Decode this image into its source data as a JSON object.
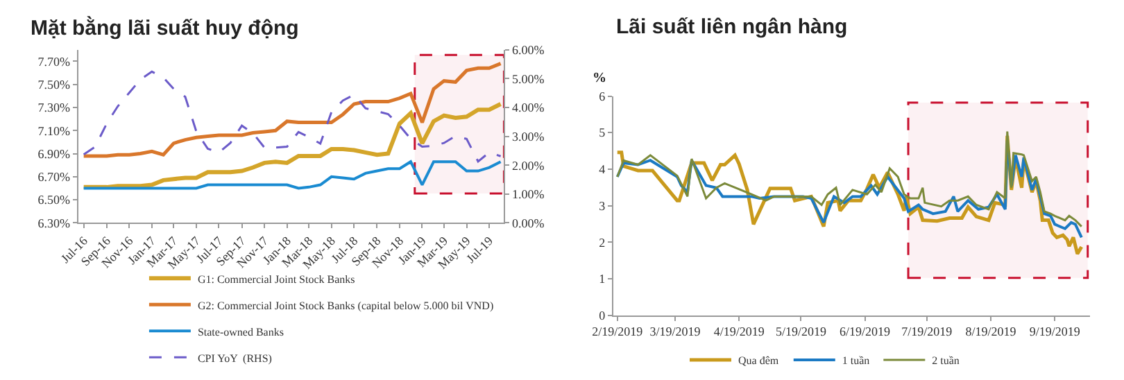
{
  "chart_data": [
    {
      "type": "line",
      "title": "Mặt bằng lãi suất huy động",
      "x": [
        "2016-07",
        "2016-08",
        "2016-09",
        "2016-10",
        "2016-11",
        "2016-12",
        "2017-01",
        "2017-02",
        "2017-03",
        "2017-04",
        "2017-05",
        "2017-06",
        "2017-07",
        "2017-08",
        "2017-09",
        "2017-10",
        "2017-11",
        "2017-12",
        "2018-01",
        "2018-02",
        "2018-03",
        "2018-04",
        "2018-05",
        "2018-06",
        "2018-07",
        "2018-08",
        "2018-09",
        "2018-10",
        "2018-11",
        "2018-12",
        "2019-01",
        "2019-02",
        "2019-03",
        "2019-04",
        "2019-05",
        "2019-06",
        "2019-07",
        "2019-08"
      ],
      "series": [
        {
          "name": "G1: Commercial Joint Stock Banks",
          "color": "#d4a52a",
          "values": [
            6.61,
            6.61,
            6.61,
            6.62,
            6.62,
            6.62,
            6.63,
            6.67,
            6.68,
            6.69,
            6.69,
            6.74,
            6.74,
            6.74,
            6.75,
            6.78,
            6.82,
            6.83,
            6.82,
            6.88,
            6.88,
            6.88,
            6.94,
            6.94,
            6.93,
            6.91,
            6.89,
            6.9,
            7.16,
            7.25,
            6.99,
            7.18,
            7.23,
            7.21,
            7.22,
            7.28,
            7.28,
            7.33
          ]
        },
        {
          "name": "G2: Commercial Joint Stock Banks (capital below 5.000 bil VND)",
          "color": "#d9772b",
          "values": [
            6.88,
            6.88,
            6.88,
            6.89,
            6.89,
            6.9,
            6.92,
            6.89,
            6.99,
            7.02,
            7.04,
            7.05,
            7.06,
            7.06,
            7.06,
            7.08,
            7.09,
            7.1,
            7.18,
            7.17,
            7.17,
            7.17,
            7.17,
            7.24,
            7.33,
            7.35,
            7.35,
            7.35,
            7.38,
            7.42,
            7.17,
            7.46,
            7.53,
            7.52,
            7.62,
            7.64,
            7.64,
            7.68
          ]
        },
        {
          "name": "State-owned Banks",
          "color": "#1a8bd1",
          "values": [
            6.6,
            6.6,
            6.6,
            6.6,
            6.6,
            6.6,
            6.6,
            6.6,
            6.6,
            6.6,
            6.6,
            6.63,
            6.63,
            6.63,
            6.63,
            6.63,
            6.63,
            6.63,
            6.63,
            6.6,
            6.61,
            6.63,
            6.7,
            6.69,
            6.68,
            6.73,
            6.75,
            6.77,
            6.77,
            6.83,
            6.63,
            6.83,
            6.83,
            6.83,
            6.75,
            6.75,
            6.78,
            6.83
          ]
        },
        {
          "name": "CPI YoY  (RHS)",
          "color": "#6b5bc9",
          "axis": "y2",
          "line_style": "dashed",
          "values": [
            2.37,
            2.64,
            3.44,
            4.04,
            4.51,
            4.97,
            5.24,
            5.04,
            4.64,
            4.37,
            3.17,
            2.57,
            2.44,
            2.77,
            3.37,
            3.11,
            2.61,
            2.61,
            2.64,
            3.15,
            2.97,
            2.75,
            3.84,
            4.24,
            4.44,
            3.97,
            3.87,
            3.77,
            3.37,
            2.91,
            2.64,
            2.67,
            2.77,
            3.01,
            2.91,
            2.13,
            2.44,
            2.31
          ]
        }
      ],
      "xlim": [
        "2016-06-16",
        "2019-08-10"
      ],
      "xticks": [
        {
          "value": "2016-07",
          "label": "Jul-16"
        },
        {
          "value": "2016-09",
          "label": "Sep-16"
        },
        {
          "value": "2016-11",
          "label": "Nov-16"
        },
        {
          "value": "2017-01",
          "label": "Jan-17"
        },
        {
          "value": "2017-03",
          "label": "Mar-17"
        },
        {
          "value": "2017-05",
          "label": "May-17"
        },
        {
          "value": "2017-07",
          "label": "Jul-17"
        },
        {
          "value": "2017-09",
          "label": "Sep-17"
        },
        {
          "value": "2017-11",
          "label": "Nov-17"
        },
        {
          "value": "2018-01",
          "label": "Jan-18"
        },
        {
          "value": "2018-03",
          "label": "Mar-18"
        },
        {
          "value": "2018-05",
          "label": "May-18"
        },
        {
          "value": "2018-07",
          "label": "Jul-18"
        },
        {
          "value": "2018-09",
          "label": "Sep-18"
        },
        {
          "value": "2018-11",
          "label": "Nov-18"
        },
        {
          "value": "2019-01",
          "label": "Jan-19"
        },
        {
          "value": "2019-03",
          "label": "Mar-19"
        },
        {
          "value": "2019-05",
          "label": "May-19"
        },
        {
          "value": "2019-07",
          "label": "Jul-19"
        }
      ],
      "ylim": [
        6.3,
        7.8
      ],
      "yticks": [
        {
          "value": 6.3,
          "label": "6.30%"
        },
        {
          "value": 6.5,
          "label": "6.50%"
        },
        {
          "value": 6.7,
          "label": "6.70%"
        },
        {
          "value": 6.9,
          "label": "6.90%"
        },
        {
          "value": 7.1,
          "label": "7.10%"
        },
        {
          "value": 7.3,
          "label": "7.30%"
        },
        {
          "value": 7.5,
          "label": "7.50%"
        },
        {
          "value": 7.7,
          "label": "7.70%"
        }
      ],
      "y2lim": [
        0,
        6
      ],
      "y2ticks": [
        {
          "value": 0,
          "label": "0.00%"
        },
        {
          "value": 1,
          "label": "1.00%"
        },
        {
          "value": 2,
          "label": "2.00%"
        },
        {
          "value": 3,
          "label": "3.00%"
        },
        {
          "value": 4,
          "label": "4.00%"
        },
        {
          "value": 5,
          "label": "5.00%"
        },
        {
          "value": 6,
          "label": "6.00%"
        }
      ],
      "bands": [
        {
          "axis": "x",
          "from": "2018-12-12",
          "to": "2019-08-10",
          "color": "#c8102e"
        }
      ],
      "legend": "bottom",
      "marker": "none"
    },
    {
      "type": "line",
      "title": "Lãi suất liên ngân hàng",
      "ylabel": "%",
      "series": [
        {
          "name": "Qua đêm",
          "color": "#c99a1c",
          "x": [
            "2019-02-19",
            "2019-02-21",
            "2019-02-22",
            "2019-03-01",
            "2019-03-08",
            "2019-03-20",
            "2019-03-21",
            "2019-03-27",
            "2019-04-02",
            "2019-04-06",
            "2019-04-10",
            "2019-04-12",
            "2019-04-17",
            "2019-04-19",
            "2019-04-23",
            "2019-04-26",
            "2019-05-04",
            "2019-05-14",
            "2019-05-16",
            "2019-05-24",
            "2019-05-30",
            "2019-06-01",
            "2019-06-06",
            "2019-06-07",
            "2019-06-11",
            "2019-06-17",
            "2019-06-20",
            "2019-06-23",
            "2019-06-26",
            "2019-06-30",
            "2019-07-05",
            "2019-07-08",
            "2019-07-09",
            "2019-07-11",
            "2019-07-15",
            "2019-07-17",
            "2019-07-24",
            "2019-07-30",
            "2019-08-05",
            "2019-08-08",
            "2019-08-12",
            "2019-08-18",
            "2019-08-21",
            "2019-08-26",
            "2019-08-27",
            "2019-08-29",
            "2019-08-31",
            "2019-09-03",
            "2019-09-04",
            "2019-09-08",
            "2019-09-10",
            "2019-09-12",
            "2019-09-13",
            "2019-09-16",
            "2019-09-18",
            "2019-09-20",
            "2019-09-23",
            "2019-09-25",
            "2019-09-26",
            "2019-09-28",
            "2019-09-30",
            "2019-10-02"
          ],
          "values": [
            4.46,
            4.46,
            4.08,
            3.96,
            3.96,
            3.14,
            3.14,
            4.17,
            4.17,
            3.69,
            4.12,
            4.12,
            4.38,
            4.14,
            3.43,
            2.49,
            3.47,
            3.47,
            3.14,
            3.25,
            2.43,
            3.08,
            3.14,
            2.86,
            3.14,
            3.14,
            3.46,
            3.85,
            3.49,
            3.91,
            3.31,
            2.86,
            3.25,
            2.78,
            2.96,
            2.6,
            2.58,
            2.66,
            2.66,
            2.96,
            2.7,
            2.6,
            3.08,
            3.02,
            4.91,
            3.43,
            4.32,
            3.49,
            4.26,
            3.37,
            3.67,
            3.14,
            2.6,
            2.6,
            2.25,
            2.13,
            2.19,
            2.07,
            1.89,
            2.13,
            1.68,
            1.87
          ]
        },
        {
          "name": "1 tuần",
          "color": "#1b7ac4",
          "x": [
            "2019-02-19",
            "2019-02-22",
            "2019-03-01",
            "2019-03-07",
            "2019-03-20",
            "2019-03-22",
            "2019-03-25",
            "2019-03-27",
            "2019-04-03",
            "2019-04-08",
            "2019-04-11",
            "2019-04-25",
            "2019-04-29",
            "2019-05-06",
            "2019-05-20",
            "2019-05-24",
            "2019-05-30",
            "2019-06-04",
            "2019-06-09",
            "2019-06-13",
            "2019-06-17",
            "2019-06-22",
            "2019-06-25",
            "2019-06-30",
            "2019-07-08",
            "2019-07-10",
            "2019-07-15",
            "2019-07-17",
            "2019-07-22",
            "2019-07-28",
            "2019-08-01",
            "2019-08-03",
            "2019-08-08",
            "2019-08-13",
            "2019-08-18",
            "2019-08-22",
            "2019-08-26",
            "2019-08-27",
            "2019-08-29",
            "2019-08-31",
            "2019-09-03",
            "2019-09-04",
            "2019-09-08",
            "2019-09-10",
            "2019-09-12",
            "2019-09-14",
            "2019-09-17",
            "2019-09-19",
            "2019-09-24",
            "2019-09-27",
            "2019-09-29",
            "2019-10-02"
          ],
          "values": [
            3.79,
            4.17,
            4.12,
            4.24,
            3.79,
            3.55,
            3.37,
            4.24,
            3.55,
            3.49,
            3.25,
            3.25,
            3.2,
            3.25,
            3.25,
            3.2,
            2.54,
            3.25,
            3.08,
            3.25,
            3.25,
            3.55,
            3.31,
            3.79,
            3.2,
            2.84,
            3.02,
            2.9,
            2.78,
            2.84,
            3.25,
            2.84,
            3.14,
            2.9,
            2.96,
            3.31,
            2.9,
            4.79,
            3.55,
            4.38,
            3.79,
            4.32,
            3.43,
            3.73,
            3.25,
            2.78,
            2.72,
            2.49,
            2.37,
            2.54,
            2.49,
            2.13
          ]
        },
        {
          "name": "2 tuần",
          "color": "#7b8a3a",
          "x": [
            "2019-02-19",
            "2019-02-22",
            "2019-03-01",
            "2019-03-07",
            "2019-03-20",
            "2019-03-25",
            "2019-03-27",
            "2019-04-03",
            "2019-04-08",
            "2019-04-12",
            "2019-04-25",
            "2019-05-02",
            "2019-05-06",
            "2019-05-24",
            "2019-05-29",
            "2019-06-01",
            "2019-06-05",
            "2019-06-07",
            "2019-06-13",
            "2019-06-20",
            "2019-06-24",
            "2019-06-27",
            "2019-07-01",
            "2019-07-05",
            "2019-07-08",
            "2019-07-11",
            "2019-07-15",
            "2019-07-17",
            "2019-07-18",
            "2019-07-26",
            "2019-07-30",
            "2019-08-03",
            "2019-08-08",
            "2019-08-12",
            "2019-08-18",
            "2019-08-22",
            "2019-08-26",
            "2019-08-27",
            "2019-08-29",
            "2019-08-30",
            "2019-09-03",
            "2019-09-04",
            "2019-09-08",
            "2019-09-10",
            "2019-09-12",
            "2019-09-14",
            "2019-09-17",
            "2019-09-19",
            "2019-09-24",
            "2019-09-26",
            "2019-09-29",
            "2019-10-02"
          ],
          "values": [
            3.79,
            4.24,
            4.12,
            4.38,
            3.82,
            3.25,
            4.28,
            3.2,
            3.49,
            3.61,
            3.31,
            3.14,
            3.25,
            3.25,
            3.02,
            3.31,
            3.49,
            3.02,
            3.43,
            3.31,
            3.57,
            3.37,
            4.02,
            3.79,
            3.31,
            3.2,
            3.2,
            3.49,
            3.08,
            2.98,
            3.14,
            3.14,
            3.25,
            3.02,
            2.9,
            3.37,
            3.2,
            5.03,
            3.49,
            4.44,
            4.4,
            4.38,
            3.67,
            3.79,
            3.37,
            2.84,
            2.78,
            2.72,
            2.6,
            2.72,
            2.6,
            2.43
          ]
        }
      ],
      "xlim": [
        "2019-02-17",
        "2019-10-06"
      ],
      "xticks": [
        {
          "value": "2019-02-19",
          "label": "2/19/2019"
        },
        {
          "value": "2019-03-19",
          "label": "3/19/2019"
        },
        {
          "value": "2019-04-19",
          "label": "4/19/2019"
        },
        {
          "value": "2019-05-19",
          "label": "5/19/2019"
        },
        {
          "value": "2019-06-19",
          "label": "6/19/2019"
        },
        {
          "value": "2019-07-19",
          "label": "7/19/2019"
        },
        {
          "value": "2019-08-19",
          "label": "8/19/2019"
        },
        {
          "value": "2019-09-19",
          "label": "9/19/2019"
        }
      ],
      "ylim": [
        0,
        6
      ],
      "yticks": [
        0,
        1,
        2,
        3,
        4,
        5,
        6
      ],
      "bands": [
        {
          "axis": "x",
          "from": "2019-07-10",
          "to": "2019-10-05",
          "color": "#c8102e"
        }
      ],
      "legend": "bottom",
      "marker": "none"
    }
  ]
}
